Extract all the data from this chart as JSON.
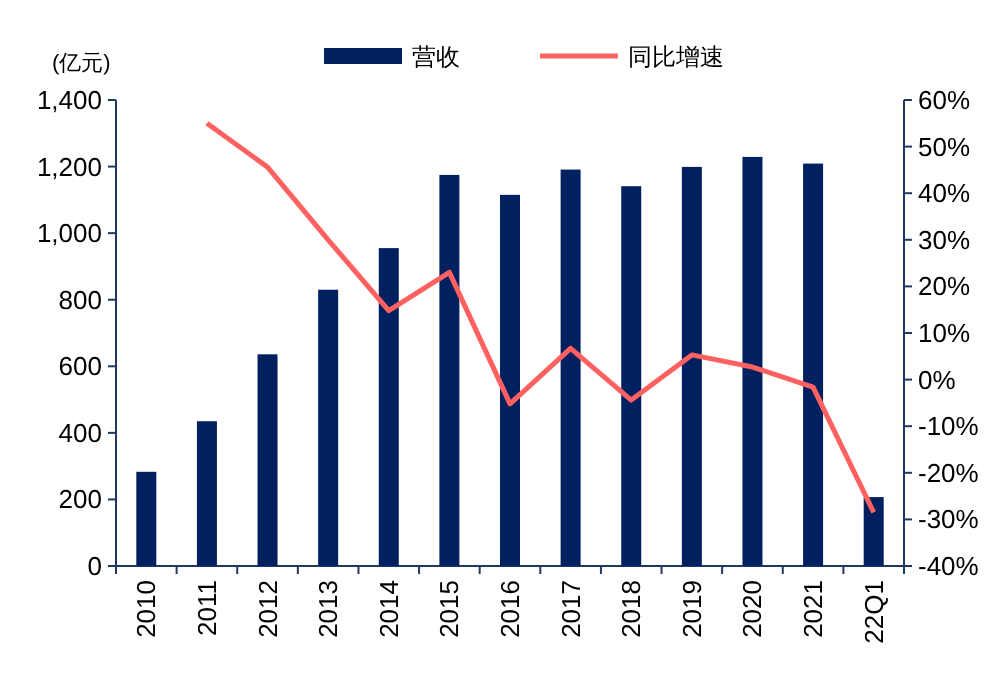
{
  "chart_data": {
    "type": "bar",
    "ylabel": "(亿元)",
    "categories": [
      "2010",
      "2011",
      "2012",
      "2013",
      "2014",
      "2015",
      "2016",
      "2017",
      "2018",
      "2019",
      "2020",
      "2021",
      "22Q1"
    ],
    "series": [
      {
        "name": "营收",
        "color": "#002060",
        "values": [
          283,
          435,
          636,
          830,
          955,
          1175,
          1115,
          1191,
          1141,
          1199,
          1229,
          1209,
          207
        ]
      },
      {
        "name": "同比增速",
        "type": "line",
        "axis": "y2",
        "color": "#ff6161",
        "marker": "none",
        "values": [
          null,
          55,
          45.6,
          30,
          14.8,
          23,
          -5.2,
          6.7,
          -4.4,
          5.3,
          2.7,
          -1.6,
          -28.5
        ]
      }
    ],
    "ylim": [
      0,
      1400
    ],
    "yticks": [
      0,
      200,
      400,
      600,
      800,
      {
        "value": 1000,
        "label": "1,000"
      },
      {
        "value": 1200,
        "label": "1,200"
      },
      {
        "value": 1400,
        "label": "1,400"
      }
    ],
    "y2lim": [
      -40,
      60
    ],
    "y2ticks": [
      {
        "value": -40,
        "label": "-40%"
      },
      {
        "value": -30,
        "label": "-30%"
      },
      {
        "value": -20,
        "label": "-20%"
      },
      {
        "value": -10,
        "label": "-10%"
      },
      {
        "value": 0,
        "label": "0%"
      },
      {
        "value": 10,
        "label": "10%"
      },
      {
        "value": 20,
        "label": "20%"
      },
      {
        "value": 30,
        "label": "30%"
      },
      {
        "value": 40,
        "label": "40%"
      },
      {
        "value": 50,
        "label": "50%"
      },
      {
        "value": 60,
        "label": "60%"
      }
    ],
    "grid": false,
    "legend": "top"
  }
}
